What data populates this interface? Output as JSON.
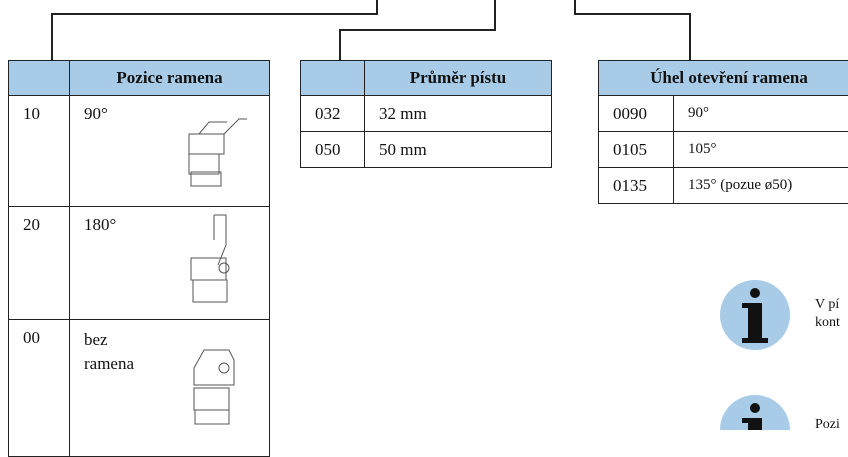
{
  "tables": [
    {
      "header": "Pozice ramena",
      "rows": [
        [
          "10",
          "90°"
        ],
        [
          "20",
          "180°"
        ],
        [
          "00",
          "bez ramena"
        ]
      ]
    },
    {
      "header": "Průměr pístu",
      "rows": [
        [
          "032",
          "32 mm"
        ],
        [
          "050",
          "50 mm"
        ]
      ]
    },
    {
      "header": "Úhel otevření ramena",
      "rows": [
        [
          "0090",
          "90°"
        ],
        [
          "0105",
          "105°"
        ],
        [
          "0135",
          "135° (pozue ø50)"
        ]
      ]
    }
  ],
  "notes": [
    {
      "lines": [
        "V pí",
        "kont"
      ]
    },
    {
      "lines": [
        "Pozi"
      ]
    }
  ]
}
